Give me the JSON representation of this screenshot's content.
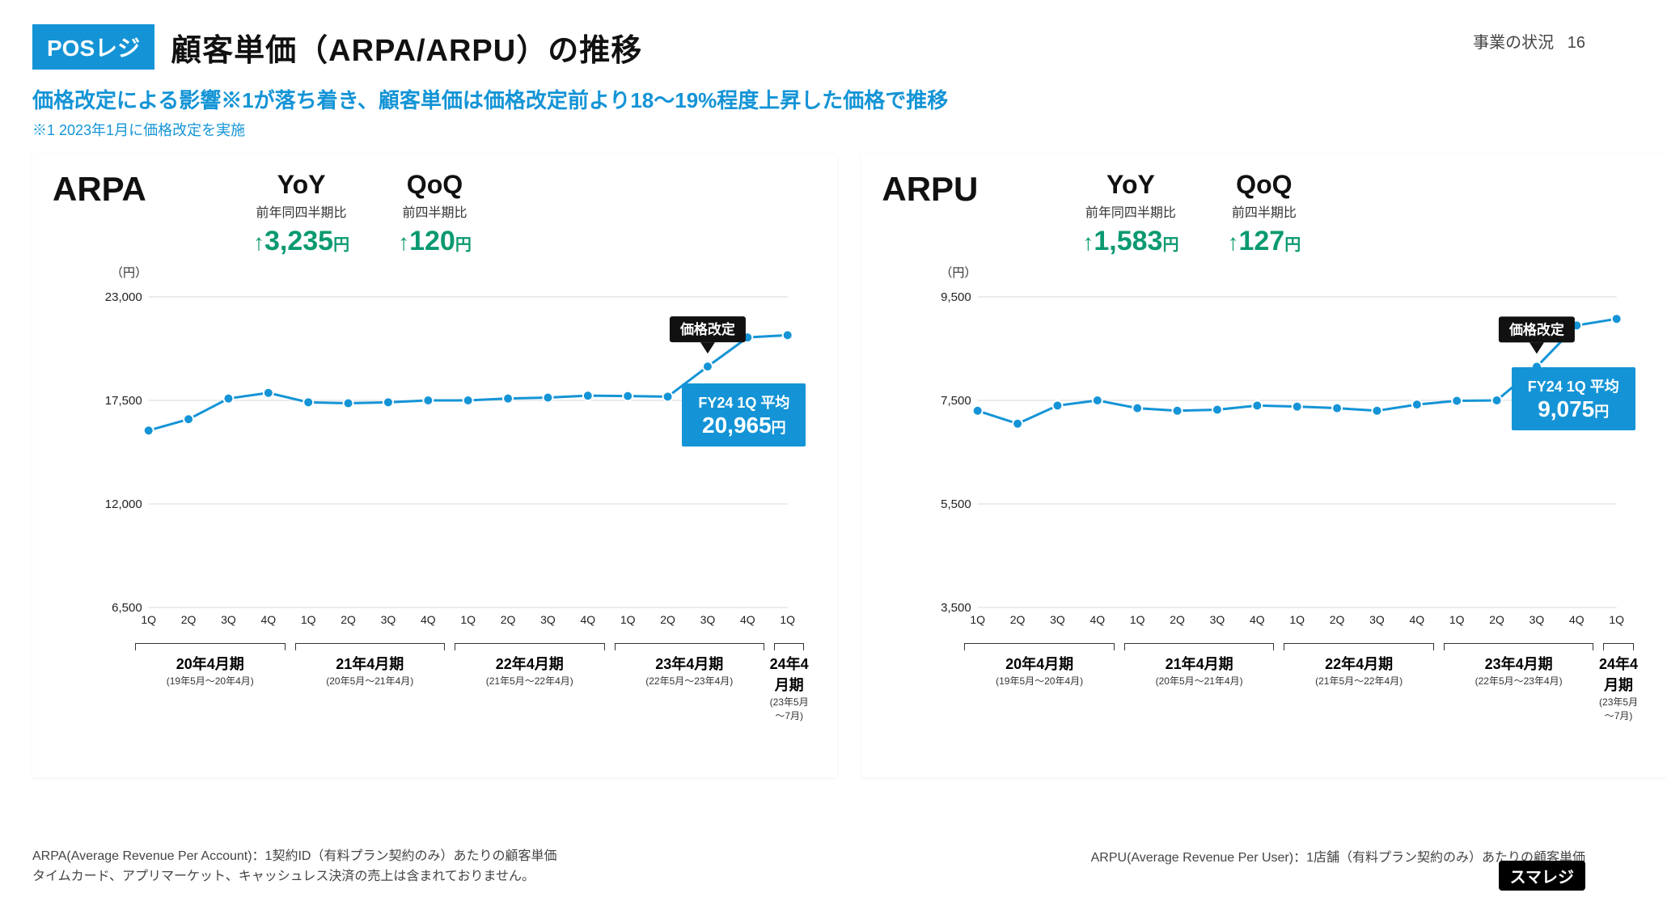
{
  "header": {
    "badge": "POSレジ",
    "title": "顧客単価（ARPA/ARPU）の推移",
    "page_section": "事業の状況",
    "page_number": "16"
  },
  "subtitle": "価格改定による影響※1が落ち着き、顧客単価は価格改定前より18～19%程度上昇した価格で推移",
  "note": "※1 2023年1月に価格改定を実施",
  "colors": {
    "series": "#1494d6",
    "accent_green": "#0a9970",
    "grid": "#d8d8d8",
    "callout_bg": "#111111",
    "avg_bg": "#1494d6",
    "background": "#ffffff"
  },
  "x": {
    "quarters": [
      "1Q",
      "2Q",
      "3Q",
      "4Q",
      "1Q",
      "2Q",
      "3Q",
      "4Q",
      "1Q",
      "2Q",
      "3Q",
      "4Q",
      "1Q",
      "2Q",
      "3Q",
      "4Q",
      "1Q"
    ],
    "fiscal_years": [
      {
        "label": "20年4月期",
        "range": "(19年5月～20年4月)",
        "span": 4
      },
      {
        "label": "21年4月期",
        "range": "(20年5月～21年4月)",
        "span": 4
      },
      {
        "label": "22年4月期",
        "range": "(21年5月～22年4月)",
        "span": 4
      },
      {
        "label": "23年4月期",
        "range": "(22年5月～23年4月)",
        "span": 4
      },
      {
        "label": "24年4月期",
        "range": "(23年5月～7月)",
        "span": 1
      }
    ]
  },
  "panels": [
    {
      "name": "ARPA",
      "y_unit": "（円）",
      "yoy": {
        "label": "YoY",
        "sublabel": "前年同四半期比",
        "value": "3,235",
        "unit": "円"
      },
      "qoq": {
        "label": "QoQ",
        "sublabel": "前四半期比",
        "value": "120",
        "unit": "円"
      },
      "yticks": [
        6500,
        12000,
        17500,
        23000
      ],
      "ylim": [
        6500,
        23000
      ],
      "values": [
        15900,
        16500,
        17600,
        17900,
        17400,
        17350,
        17400,
        17500,
        17500,
        17600,
        17650,
        17750,
        17730,
        17700,
        19300,
        20845,
        20965
      ],
      "callout": {
        "text": "価格改定",
        "at_index": 14
      },
      "avg_box": {
        "line1": "FY24 1Q 平均",
        "value": "20,965",
        "unit": "円"
      }
    },
    {
      "name": "ARPU",
      "y_unit": "（円）",
      "yoy": {
        "label": "YoY",
        "sublabel": "前年同四半期比",
        "value": "1,583",
        "unit": "円"
      },
      "qoq": {
        "label": "QoQ",
        "sublabel": "前四半期比",
        "value": "127",
        "unit": "円"
      },
      "yticks": [
        3500,
        5500,
        7500,
        9500
      ],
      "ylim": [
        3500,
        9500
      ],
      "values": [
        7300,
        7050,
        7400,
        7500,
        7350,
        7300,
        7320,
        7400,
        7380,
        7350,
        7300,
        7420,
        7492,
        7500,
        8150,
        8948,
        9075
      ],
      "callout": {
        "text": "価格改定",
        "at_index": 14
      },
      "avg_box": {
        "line1": "FY24 1Q 平均",
        "value": "9,075",
        "unit": "円"
      }
    }
  ],
  "footnotes": {
    "arpa_def": "ARPA(Average Revenue Per Account)：1契約ID（有料プラン契約のみ）あたりの顧客単価",
    "arpa_excl": "タイムカード、アプリマーケット、キャッシュレス決済の売上は含まれておりません。",
    "arpu_def": "ARPU(Average Revenue Per User)：1店舗（有料プラン契約のみ）あたりの顧客単価"
  },
  "brand": "スマレジ",
  "chart_style": {
    "type": "line",
    "line_width": 3,
    "marker": "circle",
    "marker_radius": 6,
    "marker_fill": "#1494d6",
    "marker_stroke": "#ffffff",
    "grid": true
  }
}
